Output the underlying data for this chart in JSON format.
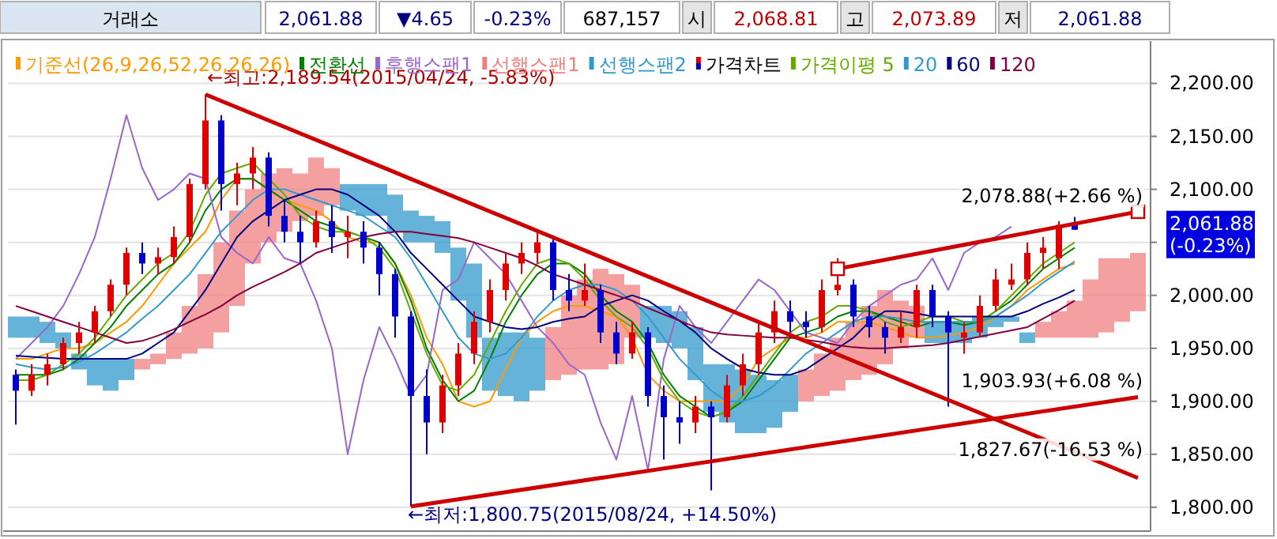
{
  "chart_data": {
    "type": "candlestick",
    "categories": [
      null,
      null,
      null,
      null,
      null,
      null,
      null,
      null,
      null,
      null,
      null,
      null,
      null,
      null,
      null,
      null,
      null,
      null,
      null,
      null,
      null,
      null,
      null,
      null,
      null,
      null,
      null,
      null,
      null,
      null,
      null,
      null,
      null,
      null,
      null,
      null,
      null,
      null,
      null,
      null,
      null,
      null,
      null,
      null,
      null,
      null,
      null,
      null,
      null,
      null,
      null,
      null,
      null,
      null,
      null,
      null,
      null,
      null,
      null,
      null,
      null,
      null,
      null,
      null,
      null,
      null,
      null,
      null,
      null,
      null,
      null,
      null
    ],
    "ylim": [
      1779,
      2222
    ],
    "yticks": [
      {
        "value": 1800,
        "label": "1,800.00"
      },
      {
        "value": 1850,
        "label": "1,850.00"
      },
      {
        "value": 1900,
        "label": "1,900.00"
      },
      {
        "value": 1950,
        "label": "1,950.00"
      },
      {
        "value": 2000,
        "label": "2,000.00"
      },
      {
        "value": 2050,
        "label": null
      },
      {
        "value": 2100,
        "label": "2,100.00"
      },
      {
        "value": 2150,
        "label": "2,150.00"
      },
      {
        "value": 2200,
        "label": "2,200.00"
      }
    ],
    "grid": "y",
    "legend": "top left",
    "series": [
      {
        "name": "기준선(26,9,26,52,26,26,26)",
        "type": "line",
        "color": "#ff9900",
        "values": [
          1940,
          1940,
          1945,
          1950,
          1950,
          1955,
          1965,
          1975,
          1990,
          2010,
          2030,
          2045,
          2060,
          2090,
          2110,
          2110,
          2100,
          2090,
          2085,
          2080,
          2070,
          2055,
          2050,
          2050,
          2030,
          2000,
          1960,
          1935,
          1900,
          1895,
          1900,
          1930,
          1960,
          1975,
          1985,
          1990,
          1990,
          1985,
          1980,
          1960,
          1925,
          1910,
          1900,
          1900,
          1900,
          1900,
          1915,
          1940,
          1950,
          1960,
          1960,
          1965,
          1975,
          1975,
          1975,
          1970,
          1965,
          1960,
          1960,
          1962,
          1965,
          1970,
          1980,
          1990,
          2005,
          2015,
          2025,
          2030,
          null,
          null,
          null,
          null
        ]
      },
      {
        "name": "전환선",
        "type": "line",
        "color": "#008000",
        "values": [
          1925,
          1925,
          1925,
          1930,
          1940,
          1955,
          1970,
          1990,
          2005,
          2020,
          2030,
          2050,
          2080,
          2100,
          2110,
          2110,
          2100,
          2090,
          2080,
          2070,
          2065,
          2060,
          2055,
          2050,
          2030,
          1995,
          1950,
          1920,
          1900,
          1910,
          1940,
          1975,
          2000,
          2020,
          2030,
          2030,
          2020,
          2000,
          1985,
          1975,
          1955,
          1925,
          1905,
          1895,
          1885,
          1890,
          1900,
          1920,
          1940,
          1960,
          1965,
          1970,
          1980,
          1985,
          1985,
          1980,
          1975,
          1970,
          1975,
          1975,
          1972,
          1975,
          1985,
          1995,
          2010,
          2025,
          2035,
          2045,
          null,
          null,
          null,
          null
        ]
      },
      {
        "name": "후행스팬1",
        "type": "line",
        "color": "#9966cc",
        "values": [
          1940,
          1955,
          1970,
          1990,
          2020,
          2055,
          2110,
          2170,
          2120,
          2090,
          2100,
          2115,
          2110,
          2055,
          2040,
          2030,
          2055,
          2035,
          2030,
          1995,
          1950,
          1850,
          1920,
          1970,
          1940,
          1905,
          1925,
          2005,
          2015,
          2050,
          2035,
          2020,
          1995,
          1970,
          1955,
          1935,
          1925,
          1880,
          1845,
          1905,
          1835,
          1940,
          1990,
          1970,
          1955,
          1975,
          1995,
          2015,
          2005,
          1985,
          1965,
          1960,
          1955,
          1975,
          1990,
          2000,
          2010,
          2015,
          2035,
          2005,
          2040,
          2050,
          2055,
          2065,
          null,
          null,
          null,
          null,
          null,
          null,
          null,
          null
        ]
      },
      {
        "name": "선행스팬1",
        "type": "bar",
        "color": "#f08080",
        "base": [
          null,
          null,
          null,
          null,
          null,
          null,
          null,
          null,
          1930,
          1935,
          1940,
          1945,
          1950,
          1965,
          1990,
          2030,
          2050,
          2060,
          2070,
          2075,
          2085,
          null,
          null,
          null,
          null,
          null,
          null,
          null,
          null,
          null,
          null,
          null,
          null,
          null,
          1920,
          1925,
          1930,
          1930,
          1935,
          1960,
          null,
          null,
          null,
          null,
          null,
          null,
          null,
          null,
          null,
          null,
          1900,
          1905,
          1910,
          1920,
          1925,
          1935,
          1950,
          1960,
          null,
          null,
          null,
          null,
          null,
          null,
          null,
          1960,
          1960,
          1960,
          1960,
          1965,
          1975,
          1985
        ],
        "values": [
          null,
          null,
          null,
          null,
          null,
          null,
          null,
          null,
          10,
          10,
          25,
          45,
          70,
          85,
          90,
          70,
          65,
          60,
          45,
          55,
          35,
          null,
          null,
          null,
          null,
          null,
          null,
          null,
          null,
          null,
          null,
          null,
          null,
          null,
          50,
          75,
          85,
          95,
          85,
          50,
          null,
          null,
          null,
          null,
          null,
          null,
          null,
          null,
          null,
          null,
          30,
          40,
          50,
          55,
          65,
          70,
          45,
          30,
          null,
          null,
          null,
          null,
          null,
          null,
          null,
          15,
          25,
          35,
          55,
          70,
          60,
          55
        ]
      },
      {
        "name": "선행스팬2",
        "type": "bar",
        "color": "#3399cc",
        "base": [
          1960,
          1960,
          1955,
          1950,
          1930,
          1915,
          1910,
          1920,
          null,
          null,
          null,
          null,
          null,
          null,
          null,
          null,
          null,
          null,
          null,
          null,
          null,
          2080,
          2075,
          2075,
          2060,
          2050,
          2050,
          2040,
          1995,
          1960,
          1910,
          1905,
          1900,
          1910,
          null,
          null,
          null,
          null,
          null,
          null,
          1960,
          1955,
          1950,
          1920,
          1890,
          1880,
          1870,
          1870,
          1875,
          1890,
          null,
          null,
          null,
          null,
          null,
          null,
          null,
          null,
          1955,
          1955,
          1955,
          1960,
          1970,
          1975,
          1955,
          null,
          null,
          null,
          null,
          null,
          null,
          null
        ],
        "values": [
          20,
          20,
          20,
          15,
          15,
          25,
          30,
          20,
          null,
          null,
          null,
          null,
          null,
          null,
          null,
          null,
          null,
          null,
          null,
          null,
          null,
          25,
          30,
          30,
          35,
          30,
          25,
          30,
          50,
          70,
          50,
          60,
          65,
          50,
          null,
          null,
          null,
          null,
          null,
          null,
          30,
          35,
          35,
          50,
          45,
          55,
          60,
          55,
          45,
          35,
          null,
          null,
          null,
          null,
          null,
          null,
          null,
          null,
          20,
          20,
          20,
          20,
          10,
          5,
          10,
          null,
          null,
          null,
          null,
          null,
          null,
          null
        ]
      },
      {
        "name": "가격차트",
        "color": "#000000",
        "colors": [
          "#0000cc",
          "#e00000",
          "#e00000",
          "#e00000",
          "#e00000",
          "#e00000",
          "#e00000",
          "#e00000",
          "#0000cc",
          "#e00000",
          "#e00000",
          "#e00000",
          "#e00000",
          "#0000cc",
          "#e00000",
          "#e00000",
          "#0000cc",
          "#0000cc",
          "#0000cc",
          "#e00000",
          "#0000cc",
          "#e00000",
          "#0000cc",
          "#0000cc",
          "#0000cc",
          "#0000cc",
          "#0000cc",
          "#e00000",
          "#e00000",
          "#e00000",
          "#e00000",
          "#e00000",
          "#e00000",
          "#e00000",
          "#0000cc",
          "#0000cc",
          "#e00000",
          "#0000cc",
          "#0000cc",
          "#e00000",
          "#0000cc",
          "#0000cc",
          "#0000cc",
          "#e00000",
          "#0000cc",
          "#e00000",
          "#e00000",
          "#e00000",
          "#e00000",
          "#0000cc",
          "#0000cc",
          "#e00000",
          "#e00000",
          "#0000cc",
          "#0000cc",
          "#0000cc",
          "#e00000",
          "#e00000",
          "#0000cc",
          "#0000cc",
          "#e00000",
          "#e00000",
          "#e00000",
          "#e00000",
          "#e00000",
          "#e00000",
          "#e00000",
          "#0000cc",
          null,
          null,
          null,
          null
        ],
        "ohlc": [
          [
            1925,
            1930,
            1878,
            1910
          ],
          [
            1910,
            1935,
            1905,
            1925
          ],
          [
            1925,
            1945,
            1915,
            1935
          ],
          [
            1935,
            1960,
            1930,
            1955
          ],
          [
            1955,
            1975,
            1945,
            1965
          ],
          [
            1965,
            1990,
            1955,
            1985
          ],
          [
            1985,
            2015,
            1980,
            2010
          ],
          [
            2010,
            2045,
            2000,
            2040
          ],
          [
            2040,
            2050,
            2020,
            2030
          ],
          [
            2030,
            2045,
            2020,
            2036
          ],
          [
            2036,
            2065,
            2030,
            2055
          ],
          [
            2055,
            2110,
            2050,
            2105
          ],
          [
            2105,
            2189.54,
            2100,
            2165
          ],
          [
            2165,
            2170,
            2080,
            2105
          ],
          [
            2105,
            2125,
            2085,
            2115
          ],
          [
            2115,
            2140,
            2100,
            2130
          ],
          [
            2130,
            2135,
            2065,
            2075
          ],
          [
            2075,
            2090,
            2050,
            2060
          ],
          [
            2060,
            2075,
            2030,
            2050
          ],
          [
            2050,
            2080,
            2045,
            2070
          ],
          [
            2070,
            2085,
            2040,
            2055
          ],
          [
            2055,
            2075,
            2035,
            2060
          ],
          [
            2060,
            2070,
            2030,
            2045
          ],
          [
            2045,
            2050,
            2000,
            2020
          ],
          [
            2020,
            2025,
            1960,
            1980
          ],
          [
            1980,
            1985,
            1800.75,
            1905
          ],
          [
            1905,
            1930,
            1850,
            1880
          ],
          [
            1880,
            1925,
            1870,
            1915
          ],
          [
            1915,
            1955,
            1905,
            1945
          ],
          [
            1945,
            1985,
            1935,
            1975
          ],
          [
            1975,
            2015,
            1965,
            2005
          ],
          [
            2005,
            2040,
            1995,
            2030
          ],
          [
            2030,
            2050,
            2020,
            2040
          ],
          [
            2040,
            2060,
            2030,
            2050
          ],
          [
            2050,
            2055,
            1995,
            2005
          ],
          [
            2005,
            2020,
            1985,
            1995
          ],
          [
            1995,
            2030,
            1990,
            2005
          ],
          [
            2005,
            2010,
            1955,
            1965
          ],
          [
            1965,
            1975,
            1935,
            1945
          ],
          [
            1945,
            1975,
            1940,
            1965
          ],
          [
            1965,
            1970,
            1895,
            1905
          ],
          [
            1905,
            1915,
            1845,
            1885
          ],
          [
            1885,
            1900,
            1860,
            1880
          ],
          [
            1880,
            1905,
            1870,
            1895
          ],
          [
            1895,
            1900,
            1816,
            1885
          ],
          [
            1885,
            1925,
            1880,
            1915
          ],
          [
            1915,
            1945,
            1905,
            1935
          ],
          [
            1935,
            1975,
            1925,
            1965
          ],
          [
            1965,
            1995,
            1955,
            1985
          ],
          [
            1985,
            1995,
            1965,
            1975
          ],
          [
            1975,
            1985,
            1960,
            1970
          ],
          [
            1970,
            2015,
            1965,
            2005
          ],
          [
            2005,
            2035,
            2000,
            2010
          ],
          [
            2010,
            2015,
            1970,
            1980
          ],
          [
            1980,
            1990,
            1960,
            1970
          ],
          [
            1970,
            1975,
            1945,
            1960
          ],
          [
            1960,
            1985,
            1955,
            1970
          ],
          [
            1970,
            2010,
            1960,
            2005
          ],
          [
            2005,
            2010,
            1970,
            1980
          ],
          [
            1980,
            1985,
            1895,
            1965
          ],
          [
            1960,
            1975,
            1945,
            1965
          ],
          [
            1965,
            2000,
            1960,
            1990
          ],
          [
            1990,
            2025,
            1985,
            2015
          ],
          [
            2010,
            2030,
            2005,
            2015
          ],
          [
            2015,
            2050,
            2010,
            2040
          ],
          [
            2040,
            2055,
            2025,
            2045
          ],
          [
            2035,
            2070,
            2025,
            2066.53
          ],
          [
            2068.81,
            2073.89,
            2061.88,
            2061.88
          ],
          null,
          null,
          null,
          null
        ]
      },
      {
        "name": "가격이평 5",
        "type": "line",
        "color": "#66aa00",
        "values": [
          1920,
          1920,
          1925,
          1935,
          1945,
          1960,
          1980,
          2000,
          2015,
          2030,
          2040,
          2060,
          2095,
          2115,
          2120,
          2125,
          2110,
          2095,
          2075,
          2065,
          2060,
          2060,
          2055,
          2045,
          2025,
          1985,
          1945,
          1915,
          1910,
          1925,
          1955,
          1985,
          2010,
          2030,
          2035,
          2030,
          2015,
          1995,
          1980,
          1970,
          1950,
          1920,
          1900,
          1890,
          1885,
          1890,
          1905,
          1925,
          1945,
          1965,
          1975,
          1980,
          1990,
          1990,
          1985,
          1975,
          1970,
          1975,
          1980,
          1980,
          1975,
          1975,
          1985,
          2000,
          2015,
          2030,
          2040,
          2050,
          null,
          null,
          null,
          null
        ]
      },
      {
        "name": "20",
        "type": "line",
        "color": "#3399cc",
        "values": [
          1935,
          1932,
          1930,
          1932,
          1937,
          1945,
          1955,
          1965,
          1978,
          1990,
          2005,
          2020,
          2040,
          2060,
          2075,
          2090,
          2100,
          2100,
          2095,
          2090,
          2085,
          2080,
          2075,
          2065,
          2055,
          2035,
          2010,
          1985,
          1960,
          1945,
          1940,
          1945,
          1960,
          1980,
          1995,
          2005,
          2010,
          2010,
          2005,
          1995,
          1980,
          1960,
          1940,
          1925,
          1910,
          1900,
          1900,
          1905,
          1915,
          1930,
          1945,
          1955,
          1965,
          1975,
          1980,
          1980,
          1978,
          1975,
          1975,
          1975,
          1975,
          1975,
          1980,
          1990,
          2000,
          2012,
          2022,
          2032,
          null,
          null,
          null,
          null
        ]
      },
      {
        "name": "60",
        "type": "line",
        "color": "#000080",
        "values": [
          1943,
          1942,
          1941,
          1940,
          1940,
          1940,
          1940,
          1940,
          1945,
          1955,
          1965,
          1985,
          2005,
          2030,
          2055,
          2070,
          2080,
          2090,
          2095,
          2100,
          2100,
          2095,
          2085,
          2075,
          2060,
          2040,
          2025,
          2010,
          1995,
          1980,
          1975,
          1970,
          1968,
          1970,
          1975,
          1978,
          1980,
          1990,
          1995,
          2000,
          1995,
          1985,
          1976,
          1965,
          1950,
          1940,
          1931,
          1927,
          1925,
          1925,
          1930,
          1940,
          1950,
          1960,
          1975,
          1985,
          1985,
          1983,
          1980,
          1980,
          1980,
          1980,
          1980,
          1980,
          1985,
          1992,
          1998,
          2005,
          null,
          null,
          null,
          null
        ]
      },
      {
        "name": "120",
        "type": "line",
        "color": "#800040",
        "values": [
          1990,
          1985,
          1980,
          1975,
          1970,
          1965,
          1960,
          1955,
          1957,
          1962,
          1968,
          1975,
          1982,
          1990,
          2000,
          2008,
          2015,
          2022,
          2030,
          2040,
          2045,
          2050,
          2055,
          2058,
          2060,
          2060,
          2058,
          2056,
          2054,
          2050,
          2045,
          2040,
          2035,
          2028,
          2020,
          2015,
          2010,
          2005,
          2000,
          1995,
          1988,
          1982,
          1976,
          1970,
          1965,
          1963,
          1962,
          1961,
          1960,
          1960,
          1958,
          1956,
          1953,
          1951,
          1950,
          1950,
          1951,
          1952,
          1953,
          1955,
          1958,
          1961,
          1964,
          1967,
          1970,
          1978,
          1986,
          1995,
          null,
          null,
          null,
          null
        ]
      },
      {
        "type": "line",
        "color": "#cc0000",
        "values": [
          null,
          null,
          null,
          null,
          null,
          null,
          null,
          null,
          null,
          null,
          null,
          null,
          2189.54,
          null,
          null,
          null,
          null,
          null,
          null,
          null,
          null,
          null,
          null,
          null,
          null,
          null,
          null,
          null,
          null,
          null,
          null,
          null,
          null,
          null,
          null,
          null,
          null,
          null,
          null,
          null,
          null,
          null,
          null,
          null,
          null,
          null,
          null,
          null,
          null,
          null,
          null,
          null,
          null,
          null,
          null,
          null,
          null,
          null,
          null,
          null,
          null,
          null,
          null,
          null,
          null,
          null,
          null,
          null,
          null,
          null,
          null,
          1827.67
        ]
      },
      {
        "type": "line",
        "color": "#cc0000",
        "values": [
          null,
          null,
          null,
          null,
          null,
          null,
          null,
          null,
          null,
          null,
          null,
          null,
          null,
          null,
          null,
          null,
          null,
          null,
          null,
          null,
          null,
          null,
          null,
          null,
          null,
          1800.75,
          null,
          null,
          null,
          null,
          null,
          null,
          null,
          null,
          null,
          null,
          null,
          null,
          null,
          null,
          null,
          null,
          null,
          null,
          null,
          null,
          null,
          null,
          null,
          null,
          null,
          null,
          null,
          null,
          null,
          null,
          null,
          null,
          null,
          null,
          null,
          null,
          null,
          null,
          null,
          null,
          null,
          null,
          null,
          null,
          null,
          1903.93
        ]
      },
      {
        "type": "line",
        "color": "#cc0000",
        "marker": "square",
        "values": [
          null,
          null,
          null,
          null,
          null,
          null,
          null,
          null,
          null,
          null,
          null,
          null,
          null,
          null,
          null,
          null,
          null,
          null,
          null,
          null,
          null,
          null,
          null,
          null,
          null,
          null,
          null,
          null,
          null,
          null,
          null,
          null,
          null,
          null,
          null,
          null,
          null,
          null,
          null,
          null,
          null,
          null,
          null,
          null,
          null,
          null,
          null,
          null,
          null,
          null,
          null,
          null,
          2025,
          null,
          null,
          null,
          null,
          null,
          null,
          null,
          null,
          null,
          null,
          null,
          null,
          null,
          null,
          null,
          null,
          null,
          null,
          2078.88
        ]
      }
    ],
    "annotations": [
      "거래소",
      "2,061.88",
      "▼4.65",
      "-0.23%",
      "687,157",
      "시",
      "2,068.81",
      "고",
      "2,073.89",
      "저",
      "2,061.88",
      "←최고:2,189.54(2015/04/24, -5.83%)",
      "←최저:1,800.75(2015/08/24, +14.50%)",
      "2,078.88(+2.66 %)",
      "1,903.93(+6.08 %)",
      "1,827.67(-16.53 %)",
      "2,061.88 (-0.23%)"
    ]
  }
}
